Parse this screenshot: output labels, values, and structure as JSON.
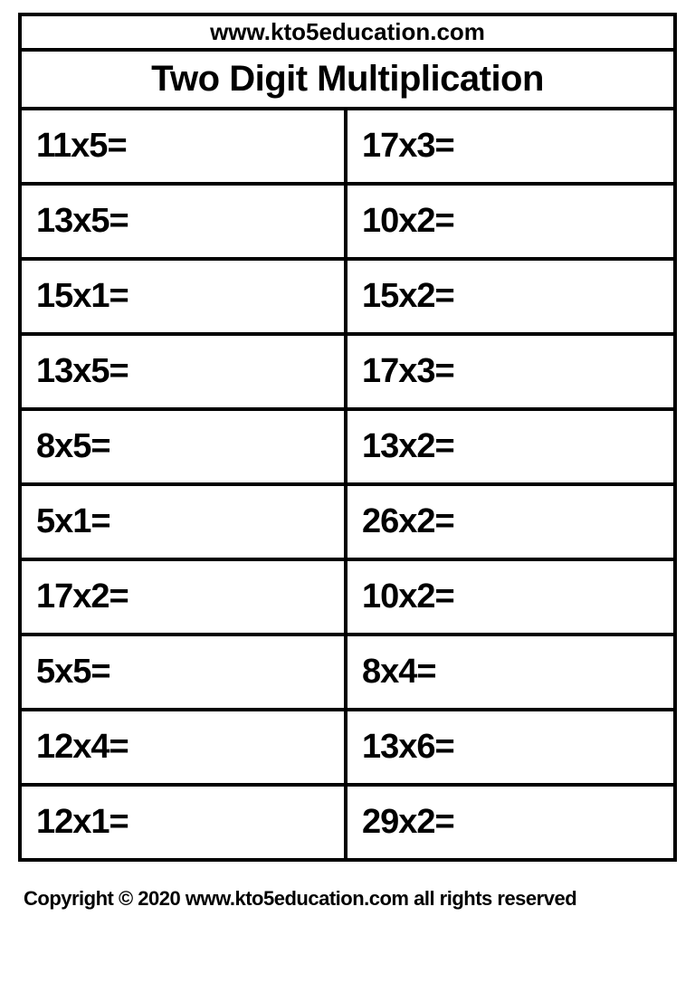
{
  "header": {
    "url": "www.kto5education.com",
    "title": "Two Digit Multiplication"
  },
  "table": {
    "type": "table",
    "columns": 2,
    "rows": [
      [
        "11x5=",
        "17x3="
      ],
      [
        "13x5=",
        "10x2="
      ],
      [
        "15x1=",
        "15x2="
      ],
      [
        "13x5=",
        "17x3="
      ],
      [
        "8x5=",
        "13x2="
      ],
      [
        "5x1=",
        "26x2="
      ],
      [
        "17x2=",
        "10x2="
      ],
      [
        "5x5=",
        "8x4="
      ],
      [
        "12x4=",
        "13x6="
      ],
      [
        "12x1=",
        "29x2="
      ]
    ],
    "border_color": "#000000",
    "border_width": 4,
    "background_color": "#ffffff",
    "text_color": "#000000",
    "cell_fontsize": 38,
    "cell_fontweight": 900,
    "header_url_fontsize": 26,
    "header_title_fontsize": 40
  },
  "footer": {
    "text": "Copyright © 2020 www.kto5education.com all rights reserved",
    "fontsize": 22,
    "fontweight": 900
  }
}
